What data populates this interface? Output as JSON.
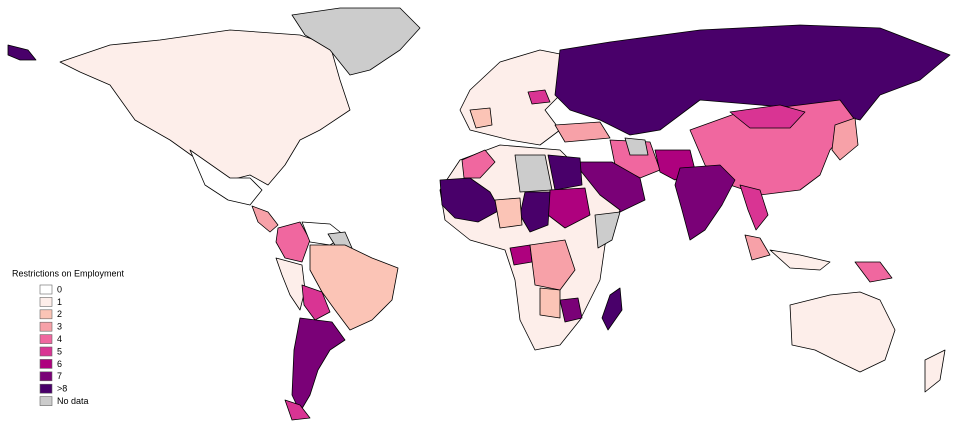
{
  "legend": {
    "title": "Restrictions on Employment",
    "items": [
      {
        "label": "0",
        "color": "#ffffff"
      },
      {
        "label": "1",
        "color": "#fdeeea"
      },
      {
        "label": "2",
        "color": "#fbc4b6"
      },
      {
        "label": "3",
        "color": "#f7a1a8"
      },
      {
        "label": "4",
        "color": "#f0679f"
      },
      {
        "label": "5",
        "color": "#d93493"
      },
      {
        "label": "6",
        "color": "#ae017e"
      },
      {
        "label": "7",
        "color": "#7a0177"
      },
      {
        "label": ">8",
        "color": "#49006a"
      },
      {
        "label": "No data",
        "color": "#cccccc"
      }
    ]
  }
}
